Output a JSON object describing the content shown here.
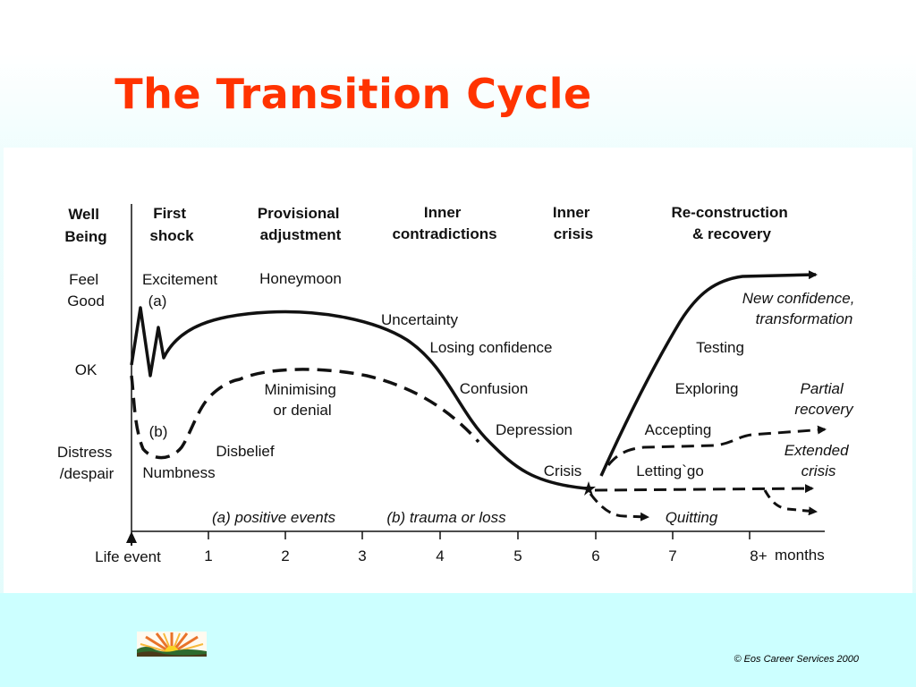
{
  "slide": {
    "title": "The Transition Cycle",
    "copyright": "© Eos Career Services 2000"
  },
  "diagram": {
    "axis_title": [
      "Well",
      "Being"
    ],
    "stage_headers": [
      [
        "First",
        "shock"
      ],
      [
        "Provisional",
        "adjustment"
      ],
      [
        "Inner",
        "contradictions"
      ],
      [
        "Inner",
        "crisis"
      ],
      [
        "Re-construction",
        "& recovery"
      ]
    ],
    "levels": {
      "feel_good": [
        "Feel",
        "Good"
      ],
      "ok": "OK",
      "distress": [
        "Distress",
        "/despair"
      ]
    },
    "labels": {
      "excitement": "Excitement",
      "a": "(a)",
      "b": "(b)",
      "honeymoon": "Honeymoon",
      "uncertainty": "Uncertainty",
      "losing_confidence": "Losing confidence",
      "confusion": "Confusion",
      "depression": "Depression",
      "crisis": "Crisis",
      "minimising": [
        "Minimising",
        "or denial"
      ],
      "disbelief": "Disbelief",
      "numbness": "Numbness",
      "testing": "Testing",
      "exploring": "Exploring",
      "accepting": "Accepting",
      "letting_go": "Letting`go",
      "quitting": "Quitting",
      "new_confidence": [
        "New confidence,",
        "transformation"
      ],
      "partial_recovery": [
        "Partial",
        "recovery"
      ],
      "extended_crisis": [
        "Extended",
        "crisis"
      ]
    },
    "legend": {
      "positive": "(a) positive events",
      "trauma": "(b) trauma or loss"
    },
    "x_axis": {
      "start": "Life event",
      "ticks": [
        "1",
        "2",
        "3",
        "4",
        "5",
        "6",
        "7",
        "8+"
      ],
      "unit": "months"
    }
  }
}
